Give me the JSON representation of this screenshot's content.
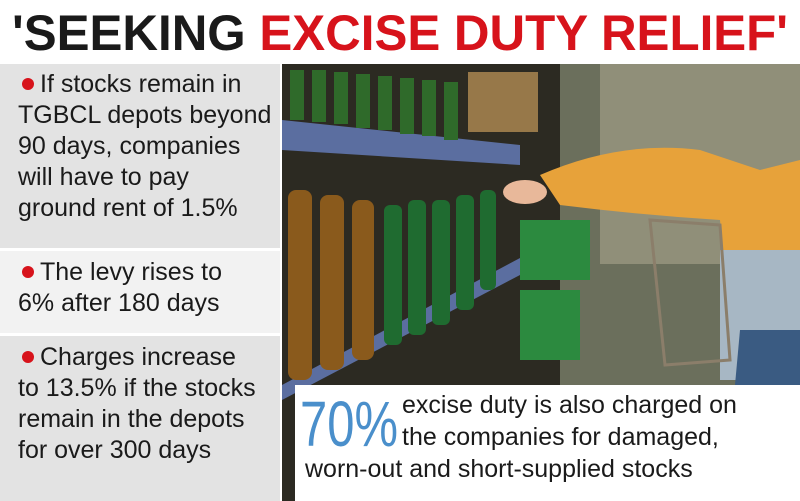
{
  "header": {
    "title_black": "'SEEKING",
    "title_red": "EXCISE DUTY RELIEF'"
  },
  "points": [
    {
      "lines": [
        "If stocks remain in",
        "TGBCL depots beyond",
        "90 days, companies",
        "will have to pay",
        "ground rent of 1.5%"
      ]
    },
    {
      "lines": [
        "The levy rises to",
        "6% after 180 days"
      ]
    },
    {
      "lines": [
        "Charges increase",
        "to 13.5% if the stocks",
        "remain in the depots",
        "for over 300 days"
      ]
    }
  ],
  "callout": {
    "figure": "70%",
    "lines": [
      "excise duty is also charged on",
      "the companies for damaged,",
      "worn-out and short-supplied stocks"
    ]
  }
}
